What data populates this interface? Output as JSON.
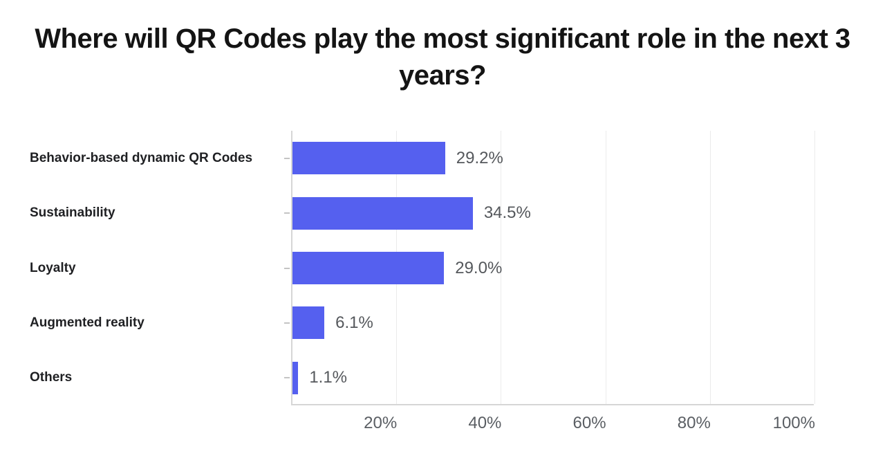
{
  "title": "Where will QR Codes play the most significant role in the next 3 years?",
  "chart_data": {
    "type": "bar",
    "orientation": "horizontal",
    "title": "Where will QR Codes play the most significant role in the next 3 years?",
    "categories": [
      "Behavior-based dynamic QR Codes",
      "Sustainability",
      "Loyalty",
      "Augmented reality",
      "Others"
    ],
    "values": [
      29.2,
      34.5,
      29.0,
      6.1,
      1.1
    ],
    "value_labels": [
      "29.2%",
      "34.5%",
      "29.0%",
      "6.1%",
      "1.1%"
    ],
    "x_ticks": [
      "20%",
      "40%",
      "60%",
      "80%",
      "100%"
    ],
    "x_tick_values": [
      20,
      40,
      60,
      80,
      100
    ],
    "xlim": [
      0,
      100
    ],
    "xlabel": "",
    "ylabel": "",
    "grid": "vertical",
    "legend": "none",
    "colors": {
      "bar": "#5560EF",
      "gridline": "#ebebeb",
      "axis": "#d6d6d6",
      "y_tick": "#c4c4c4",
      "category_label": "#1f2023",
      "value_label": "#55585c",
      "tick_label": "#5a5e63",
      "title": "#141414",
      "background": "#ffffff"
    }
  }
}
